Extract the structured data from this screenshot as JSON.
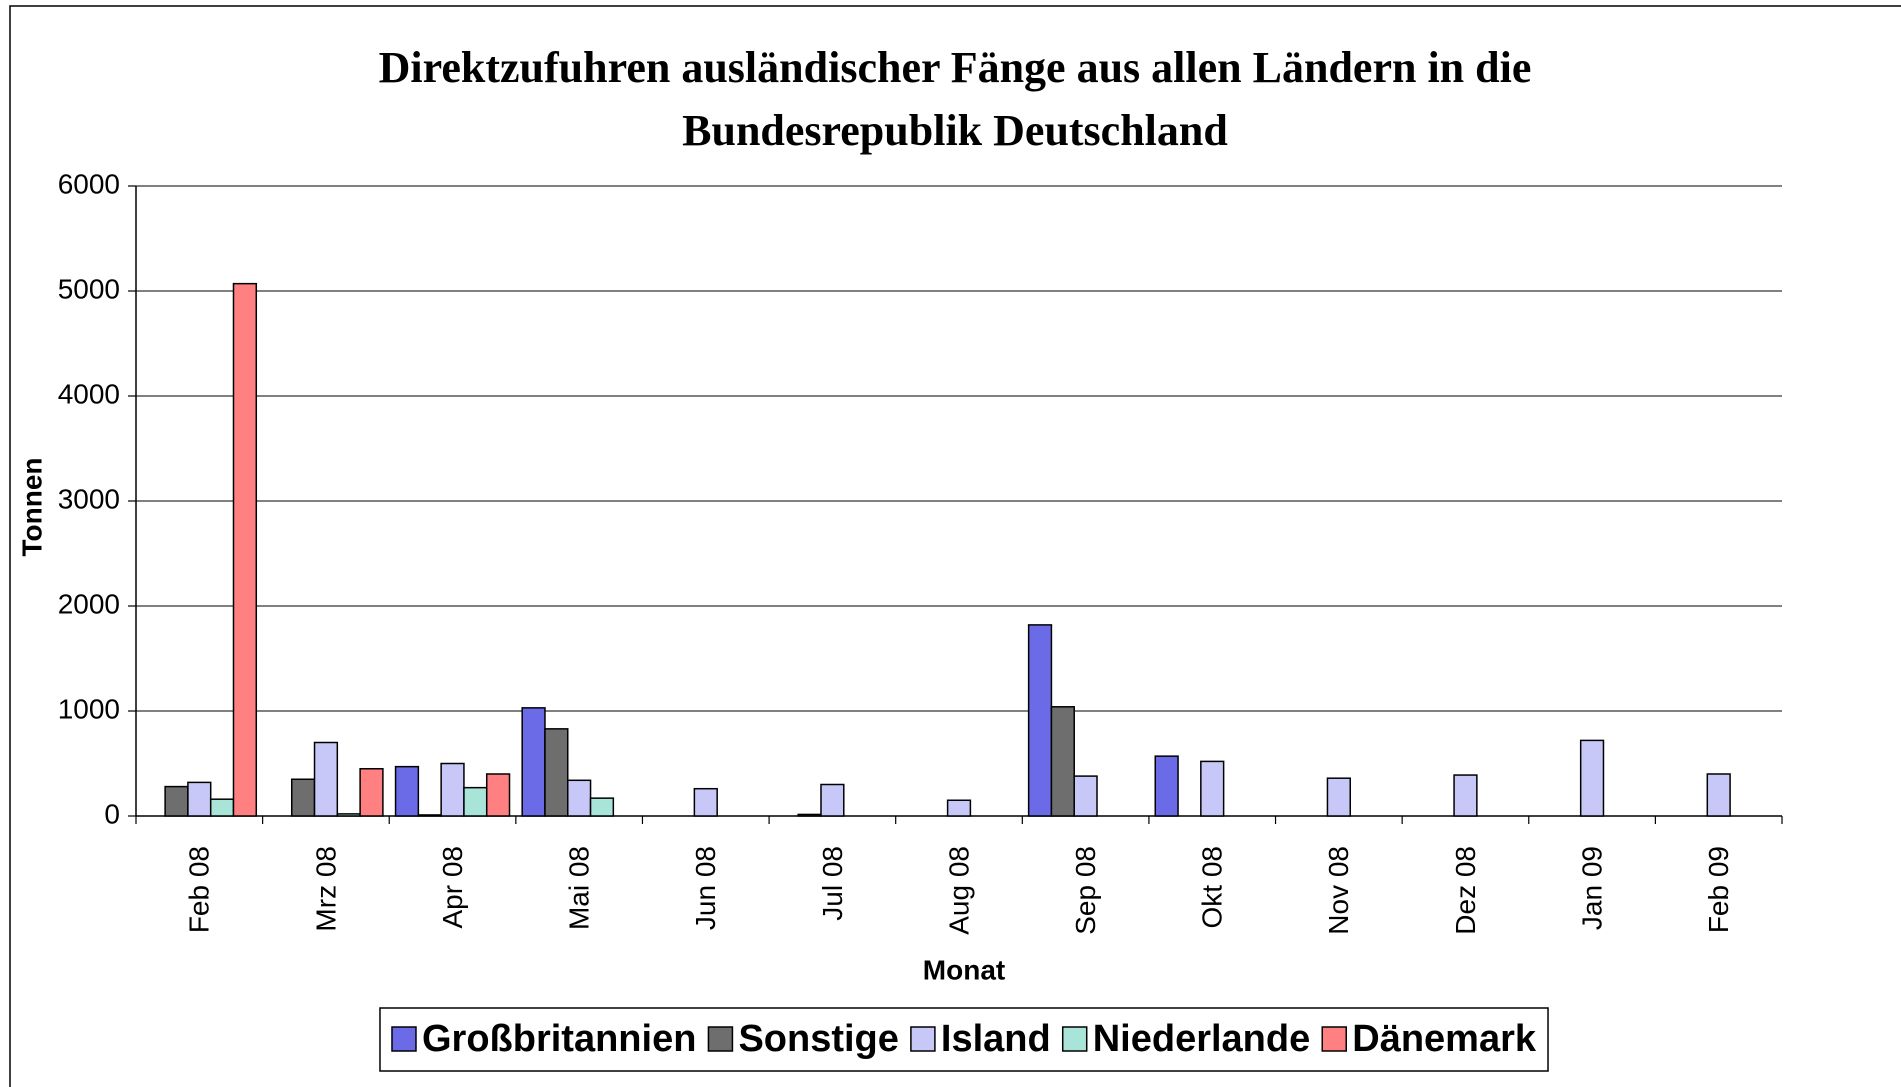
{
  "chart_data": {
    "type": "bar",
    "title": "Direktzufuhren ausländischer Fänge aus allen Ländern in die Bundesrepublik Deutschland",
    "x_label": "Monat",
    "y_label": "Tonnen",
    "categories": [
      "Feb 08",
      "Mrz 08",
      "Apr 08",
      "Mai 08",
      "Jun 08",
      "Jul 08",
      "Aug 08",
      "Sep 08",
      "Okt 08",
      "Nov 08",
      "Dez 08",
      "Jan 09",
      "Feb 09"
    ],
    "series": [
      {
        "name": "Großbritannien",
        "color": "#6b6be8",
        "values": [
          0,
          0,
          470,
          1030,
          0,
          0,
          0,
          1820,
          570,
          0,
          0,
          0,
          0
        ]
      },
      {
        "name": "Sonstige",
        "color": "#6e6e6e",
        "values": [
          280,
          350,
          10,
          830,
          0,
          15,
          0,
          1040,
          0,
          0,
          0,
          0,
          0
        ]
      },
      {
        "name": "Island",
        "color": "#c8c8f8",
        "values": [
          320,
          700,
          500,
          340,
          260,
          300,
          150,
          380,
          520,
          360,
          390,
          720,
          400
        ]
      },
      {
        "name": "Niederlande",
        "color": "#a8e4d8",
        "values": [
          160,
          20,
          270,
          170,
          0,
          0,
          0,
          0,
          0,
          0,
          0,
          0,
          0
        ]
      },
      {
        "name": "Dänemark",
        "color": "#ff8080",
        "values": [
          5070,
          450,
          400,
          0,
          0,
          0,
          0,
          0,
          0,
          0,
          0,
          0,
          0
        ]
      }
    ],
    "ylim": [
      0,
      6000
    ],
    "yticks": [
      0,
      1000,
      2000,
      3000,
      4000,
      5000,
      6000
    ],
    "grid": true,
    "legend": "bottom"
  }
}
